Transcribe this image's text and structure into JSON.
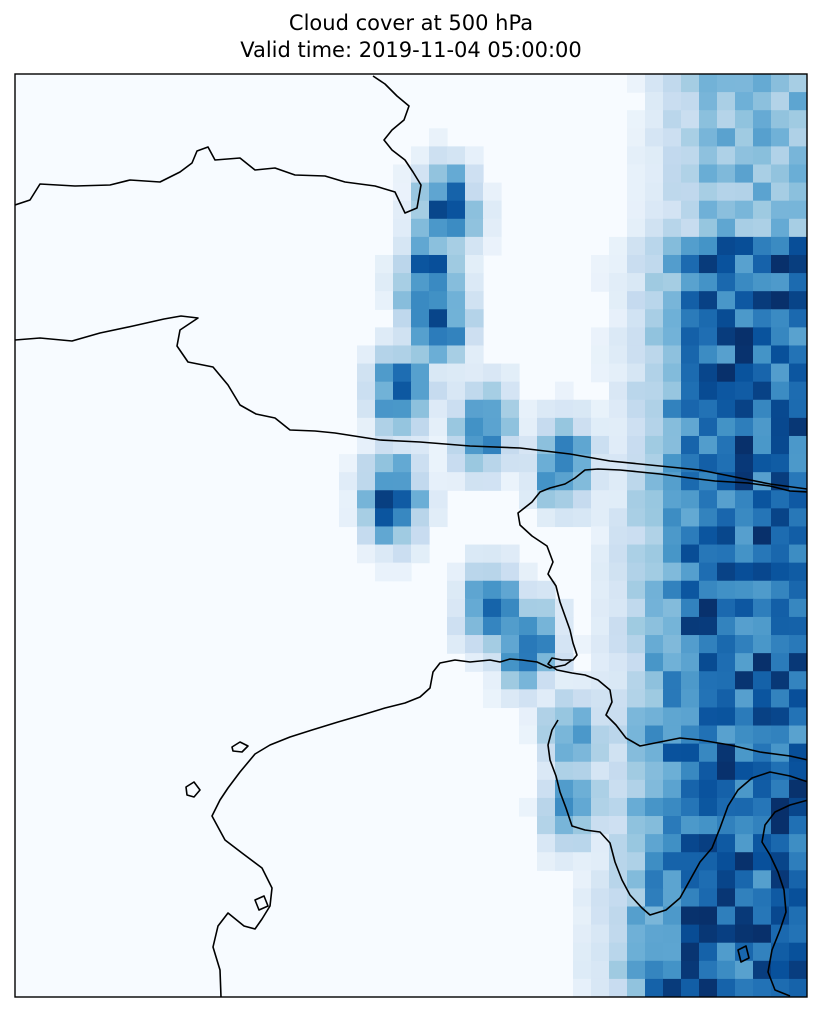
{
  "chart_data": {
    "type": "heatmap",
    "title": "Cloud cover at 500 hPa",
    "subtitle": "Valid time: 2019-11-04 05:00:00",
    "colormap": "Blues",
    "colormap_stops": [
      "#f7fbff",
      "#deebf7",
      "#c6dbef",
      "#9ecae1",
      "#6baed6",
      "#4292c6",
      "#2171b5",
      "#08519c",
      "#08306b"
    ],
    "value_range": [
      0,
      1
    ],
    "grid_size": [
      44,
      51
    ],
    "background_value": 0,
    "cloud_field": {
      "frontal_band": {
        "axis_start_col": 39.5,
        "axis_end_col": 37.0,
        "half_width_cols": 4.0,
        "peak": 0.85,
        "north_peak_rows": [
          0,
          8
        ]
      },
      "patches": [
        {
          "row": 7,
          "col": 23.5,
          "peak": 0.95
        },
        {
          "row": 11,
          "col": 22.5,
          "peak": 0.95
        },
        {
          "row": 13,
          "col": 23.0,
          "peak": 0.98
        },
        {
          "row": 17,
          "col": 21.0,
          "peak": 0.85
        },
        {
          "row": 19,
          "col": 25.5,
          "peak": 0.85
        },
        {
          "row": 21,
          "col": 30.0,
          "peak": 0.9
        },
        {
          "row": 23,
          "col": 20.5,
          "peak": 0.95
        },
        {
          "row": 29,
          "col": 26.0,
          "peak": 0.8
        },
        {
          "row": 31,
          "col": 28.0,
          "peak": 0.9
        },
        {
          "row": 36,
          "col": 30.5,
          "peak": 0.7
        },
        {
          "row": 40,
          "col": 30.5,
          "peak": 0.7
        },
        {
          "row": 43,
          "col": 41.0,
          "peak": 0.95
        },
        {
          "row": 47,
          "col": 41.5,
          "peak": 1.0
        },
        {
          "row": 46,
          "col": 38.0,
          "peak": 0.95
        }
      ]
    },
    "coastlines": "black outline"
  }
}
